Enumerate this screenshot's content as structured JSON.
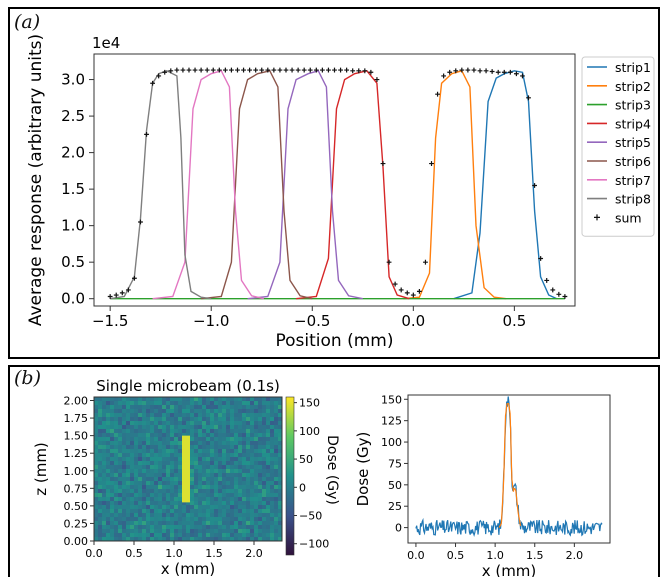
{
  "panel_a": {
    "letter": "(a)"
  },
  "panel_b": {
    "letter": "(b)"
  },
  "chart_data": [
    {
      "type": "line",
      "panel": "(a)",
      "title": "",
      "xlabel": "Position (mm)",
      "ylabel": "Average response (arbitrary units)",
      "y_multiplier_label": "1e4",
      "xlim": [
        -1.58,
        0.8
      ],
      "ylim": [
        -0.1,
        3.35
      ],
      "xticks": [
        -1.5,
        -1.0,
        -0.5,
        0.0,
        0.5
      ],
      "xtick_labels": [
        "−1.5",
        "−1.0",
        "−0.5",
        "0.0",
        "0.5"
      ],
      "yticks": [
        0.0,
        0.5,
        1.0,
        1.5,
        2.0,
        2.5,
        3.0
      ],
      "ytick_labels": [
        "0.0",
        "0.5",
        "1.0",
        "1.5",
        "2.0",
        "2.5",
        "3.0"
      ],
      "grid": false,
      "legend_position": "outside-right",
      "series": [
        {
          "name": "strip1",
          "color": "#1f77b4",
          "x": [
            0.2,
            0.29,
            0.33,
            0.37,
            0.41,
            0.45,
            0.5,
            0.54,
            0.57,
            0.6,
            0.63,
            0.67,
            0.71
          ],
          "y": [
            0.0,
            0.08,
            0.9,
            2.7,
            3.02,
            3.08,
            3.12,
            3.1,
            2.7,
            1.2,
            0.3,
            0.05,
            0.0
          ]
        },
        {
          "name": "strip2",
          "color": "#ff7f0e",
          "x": [
            -0.05,
            0.03,
            0.08,
            0.11,
            0.14,
            0.19,
            0.24,
            0.28,
            0.31,
            0.35,
            0.4,
            0.46
          ],
          "y": [
            0.0,
            0.02,
            0.35,
            2.2,
            2.95,
            3.08,
            3.12,
            2.9,
            1.0,
            0.15,
            0.02,
            0.0
          ]
        },
        {
          "name": "strip3",
          "color": "#2ca02c",
          "x": [
            -1.5,
            0.75
          ],
          "y": [
            0.0,
            0.0
          ]
        },
        {
          "name": "strip4",
          "color": "#d62728",
          "x": [
            -0.58,
            -0.48,
            -0.42,
            -0.38,
            -0.34,
            -0.29,
            -0.23,
            -0.18,
            -0.15,
            -0.12,
            -0.08,
            -0.02
          ],
          "y": [
            0.0,
            0.03,
            0.55,
            2.6,
            3.0,
            3.08,
            3.12,
            2.95,
            1.8,
            0.3,
            0.05,
            0.0
          ]
        },
        {
          "name": "strip5",
          "color": "#9467bd",
          "x": [
            -0.82,
            -0.72,
            -0.66,
            -0.62,
            -0.58,
            -0.52,
            -0.47,
            -0.43,
            -0.4,
            -0.37,
            -0.32,
            -0.25
          ],
          "y": [
            0.0,
            0.03,
            0.5,
            2.6,
            3.0,
            3.08,
            3.12,
            2.9,
            1.2,
            0.25,
            0.04,
            0.0
          ]
        },
        {
          "name": "strip6",
          "color": "#8c564b",
          "x": [
            -1.05,
            -0.95,
            -0.9,
            -0.86,
            -0.82,
            -0.77,
            -0.71,
            -0.67,
            -0.64,
            -0.61,
            -0.56,
            -0.5
          ],
          "y": [
            0.0,
            0.03,
            0.5,
            2.6,
            3.0,
            3.08,
            3.12,
            2.9,
            1.2,
            0.25,
            0.04,
            0.0
          ]
        },
        {
          "name": "strip7",
          "color": "#e377c2",
          "x": [
            -1.29,
            -1.19,
            -1.13,
            -1.09,
            -1.05,
            -1.0,
            -0.95,
            -0.91,
            -0.88,
            -0.85,
            -0.8,
            -0.74
          ],
          "y": [
            0.0,
            0.03,
            0.5,
            2.6,
            3.0,
            3.08,
            3.12,
            2.9,
            1.2,
            0.25,
            0.04,
            0.0
          ]
        },
        {
          "name": "strip8",
          "color": "#7f7f7f",
          "x": [
            -1.5,
            -1.43,
            -1.38,
            -1.35,
            -1.32,
            -1.29,
            -1.26,
            -1.22,
            -1.17,
            -1.15,
            -1.13,
            -1.1,
            -1.05,
            -1.0
          ],
          "y": [
            0.0,
            0.03,
            0.3,
            1.1,
            2.3,
            2.95,
            3.08,
            3.12,
            3.05,
            2.2,
            0.6,
            0.1,
            0.02,
            0.0
          ]
        }
      ],
      "sum": {
        "name": "sum",
        "color": "#111111",
        "x": [
          -1.5,
          -1.47,
          -1.44,
          -1.41,
          -1.38,
          -1.35,
          -1.32,
          -1.29,
          -1.26,
          -1.23,
          -1.2,
          -1.17,
          -1.14,
          -1.11,
          -1.08,
          -1.05,
          -1.02,
          -0.99,
          -0.96,
          -0.93,
          -0.9,
          -0.87,
          -0.84,
          -0.81,
          -0.78,
          -0.75,
          -0.72,
          -0.69,
          -0.66,
          -0.63,
          -0.6,
          -0.57,
          -0.54,
          -0.51,
          -0.48,
          -0.45,
          -0.42,
          -0.39,
          -0.36,
          -0.33,
          -0.3,
          -0.27,
          -0.24,
          -0.21,
          -0.18,
          -0.15,
          -0.12,
          -0.09,
          -0.06,
          -0.03,
          0.0,
          0.03,
          0.06,
          0.09,
          0.12,
          0.15,
          0.18,
          0.21,
          0.24,
          0.27,
          0.3,
          0.33,
          0.36,
          0.39,
          0.42,
          0.45,
          0.48,
          0.51,
          0.54,
          0.57,
          0.6,
          0.63,
          0.66,
          0.69,
          0.72,
          0.75
        ],
        "y": [
          0.03,
          0.05,
          0.08,
          0.12,
          0.28,
          1.05,
          2.25,
          2.95,
          3.05,
          3.1,
          3.12,
          3.13,
          3.13,
          3.13,
          3.13,
          3.13,
          3.13,
          3.13,
          3.13,
          3.13,
          3.13,
          3.13,
          3.13,
          3.13,
          3.13,
          3.13,
          3.13,
          3.13,
          3.13,
          3.13,
          3.13,
          3.13,
          3.13,
          3.13,
          3.13,
          3.13,
          3.13,
          3.13,
          3.13,
          3.13,
          3.12,
          3.12,
          3.12,
          3.1,
          3.0,
          1.85,
          0.5,
          0.2,
          0.12,
          0.08,
          0.05,
          0.1,
          0.5,
          1.85,
          2.8,
          3.05,
          3.1,
          3.12,
          3.13,
          3.13,
          3.13,
          3.12,
          3.12,
          3.11,
          3.1,
          3.1,
          3.1,
          3.08,
          3.05,
          2.75,
          1.55,
          0.55,
          0.25,
          0.12,
          0.06,
          0.03
        ]
      }
    },
    {
      "type": "heatmap",
      "panel": "(b)",
      "title": "Single microbeam (0.1s)",
      "xlabel": "x (mm)",
      "ylabel": "z (mm)",
      "xlim": [
        0.0,
        2.35
      ],
      "ylim": [
        0.0,
        2.05
      ],
      "xtick_labels": [
        "0.0",
        "0.5",
        "1.0",
        "1.5",
        "2.0"
      ],
      "ytick_labels": [
        "0.00",
        "0.25",
        "0.50",
        "0.75",
        "1.00",
        "1.25",
        "1.50",
        "1.75",
        "2.00"
      ],
      "background_range": [
        -50,
        50
      ],
      "beam": {
        "x_center": 1.15,
        "width": 0.1,
        "z_min": 0.55,
        "z_max": 1.5,
        "value": 145
      },
      "colorbar": {
        "label": "Dose (Gy)",
        "range": [
          -120,
          160
        ],
        "ticks": [
          150,
          100,
          50,
          0,
          -50,
          -100
        ],
        "tick_labels": [
          "150",
          "100",
          "50",
          "0",
          "−50",
          "−100"
        ],
        "colors": [
          "#30123b",
          "#3b528b",
          "#21918c",
          "#5ec962",
          "#fde725"
        ]
      }
    },
    {
      "type": "line",
      "panel": "(b)",
      "xlabel": "x (mm)",
      "ylabel": "Dose (Gy)",
      "xlim": [
        -0.1,
        2.45
      ],
      "ylim": [
        -18,
        155
      ],
      "xtick_labels": [
        "0.0",
        "0.5",
        "1.0",
        "1.5",
        "2.0"
      ],
      "ytick_labels": [
        "0",
        "25",
        "50",
        "75",
        "100",
        "125",
        "150"
      ],
      "series": [
        {
          "name": "",
          "color": "#1f77b4",
          "noise_amplitude": 9,
          "x": [
            0.0,
            1.05,
            1.08,
            1.11,
            1.13,
            1.15,
            1.17,
            1.19,
            1.21,
            1.23,
            1.24,
            1.26,
            1.29,
            1.32,
            1.36,
            2.35
          ],
          "y": [
            0,
            0,
            5,
            60,
            130,
            147,
            147,
            135,
            60,
            42,
            48,
            45,
            20,
            3,
            0,
            0
          ]
        },
        {
          "name": "",
          "color": "#ff7f0e",
          "noise_amplitude": 0,
          "x": [
            1.05,
            1.08,
            1.11,
            1.13,
            1.15,
            1.17,
            1.19,
            1.21,
            1.23,
            1.24,
            1.26,
            1.29,
            1.32
          ],
          "y": [
            0,
            5,
            60,
            130,
            145,
            145,
            133,
            58,
            42,
            46,
            44,
            18,
            2
          ]
        }
      ]
    }
  ]
}
